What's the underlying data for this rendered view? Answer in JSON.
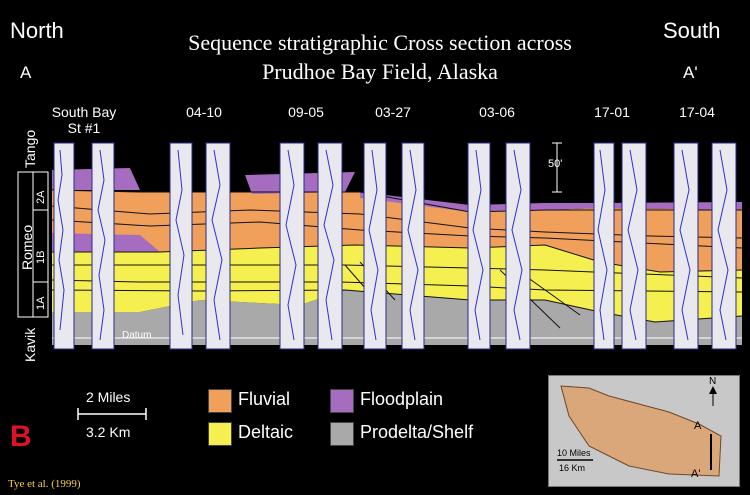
{
  "header": {
    "left_direction": "North",
    "right_direction": "South",
    "left_point": "A",
    "right_point": "A'",
    "title_line1": "Sequence stratigraphic Cross section across",
    "title_line2": "Prudhoe Bay Field, Alaska"
  },
  "wells": [
    {
      "name_line1": "South Bay",
      "name_line2": "St #1"
    },
    {
      "name_line1": "04-10",
      "name_line2": ""
    },
    {
      "name_line1": "09-05",
      "name_line2": ""
    },
    {
      "name_line1": "03-27",
      "name_line2": ""
    },
    {
      "name_line1": "03-06",
      "name_line2": ""
    },
    {
      "name_line1": "17-01",
      "name_line2": ""
    },
    {
      "name_line1": "17-04",
      "name_line2": ""
    }
  ],
  "section": {
    "scale_bar_label": "50'",
    "datum_label": "Datum",
    "units": {
      "tango": "Tango",
      "romeo": "Romeo",
      "kavik": "Kavik",
      "sub_2a": "2A",
      "sub_1b": "1B",
      "sub_1a": "1A"
    }
  },
  "scale": {
    "miles": "2 Miles",
    "km": "3.2 Km"
  },
  "legend": [
    {
      "label": "Fluvial",
      "color": "#f0a05a"
    },
    {
      "label": "Floodplain",
      "color": "#a56cc0"
    },
    {
      "label": "Deltaic",
      "color": "#f5f050"
    },
    {
      "label": "Prodelta/Shelf",
      "color": "#a9a9a9"
    }
  ],
  "figure_label": "B",
  "citation": "Tye et al. (1999)",
  "inset_map": {
    "north_label": "N",
    "a_label": "A",
    "a_prime_label": "A'",
    "scale_miles": "10 Miles",
    "scale_km": "16 Km",
    "land_color": "#d9a77a"
  }
}
